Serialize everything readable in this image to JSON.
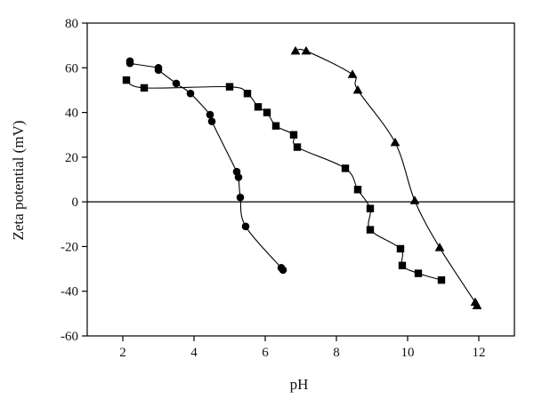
{
  "chart_data": {
    "type": "scatter",
    "xlabel": "pH",
    "ylabel": "Zeta potential (mV)",
    "xlim": [
      1,
      13
    ],
    "ylim": [
      -60,
      80
    ],
    "x_ticks": [
      2,
      4,
      6,
      8,
      10,
      12
    ],
    "y_ticks": [
      -60,
      -40,
      -20,
      0,
      20,
      40,
      60,
      80
    ],
    "zero_line": true,
    "grid": false,
    "legend": "none",
    "series": [
      {
        "marker": "circle",
        "color": "#000000",
        "points": [
          [
            2.2,
            63
          ],
          [
            2.2,
            62
          ],
          [
            3.0,
            60
          ],
          [
            3.0,
            59
          ],
          [
            3.5,
            53
          ],
          [
            3.9,
            48.5
          ],
          [
            4.45,
            39
          ],
          [
            4.5,
            36
          ],
          [
            5.2,
            13.5
          ],
          [
            5.25,
            11
          ],
          [
            5.3,
            2
          ],
          [
            5.45,
            -11
          ],
          [
            6.45,
            -29.5
          ],
          [
            6.5,
            -30.5
          ]
        ]
      },
      {
        "marker": "square",
        "color": "#000000",
        "points": [
          [
            2.1,
            54.5
          ],
          [
            2.6,
            51
          ],
          [
            5.0,
            51.5
          ],
          [
            5.5,
            48.5
          ],
          [
            5.8,
            42.5
          ],
          [
            6.05,
            40
          ],
          [
            6.3,
            34
          ],
          [
            6.8,
            30
          ],
          [
            6.9,
            24.5
          ],
          [
            8.25,
            15
          ],
          [
            8.6,
            5.5
          ],
          [
            8.95,
            -3
          ],
          [
            8.95,
            -12.5
          ],
          [
            9.8,
            -21
          ],
          [
            9.85,
            -28.5
          ],
          [
            10.3,
            -32
          ],
          [
            10.95,
            -35
          ]
        ]
      },
      {
        "marker": "triangle",
        "color": "#000000",
        "points": [
          [
            6.85,
            67.5
          ],
          [
            7.15,
            67.5
          ],
          [
            8.45,
            57
          ],
          [
            8.6,
            50
          ],
          [
            9.65,
            26.5
          ],
          [
            10.2,
            0.5
          ],
          [
            10.9,
            -20.5
          ],
          [
            11.9,
            -45
          ],
          [
            11.95,
            -46.5
          ]
        ]
      }
    ]
  }
}
